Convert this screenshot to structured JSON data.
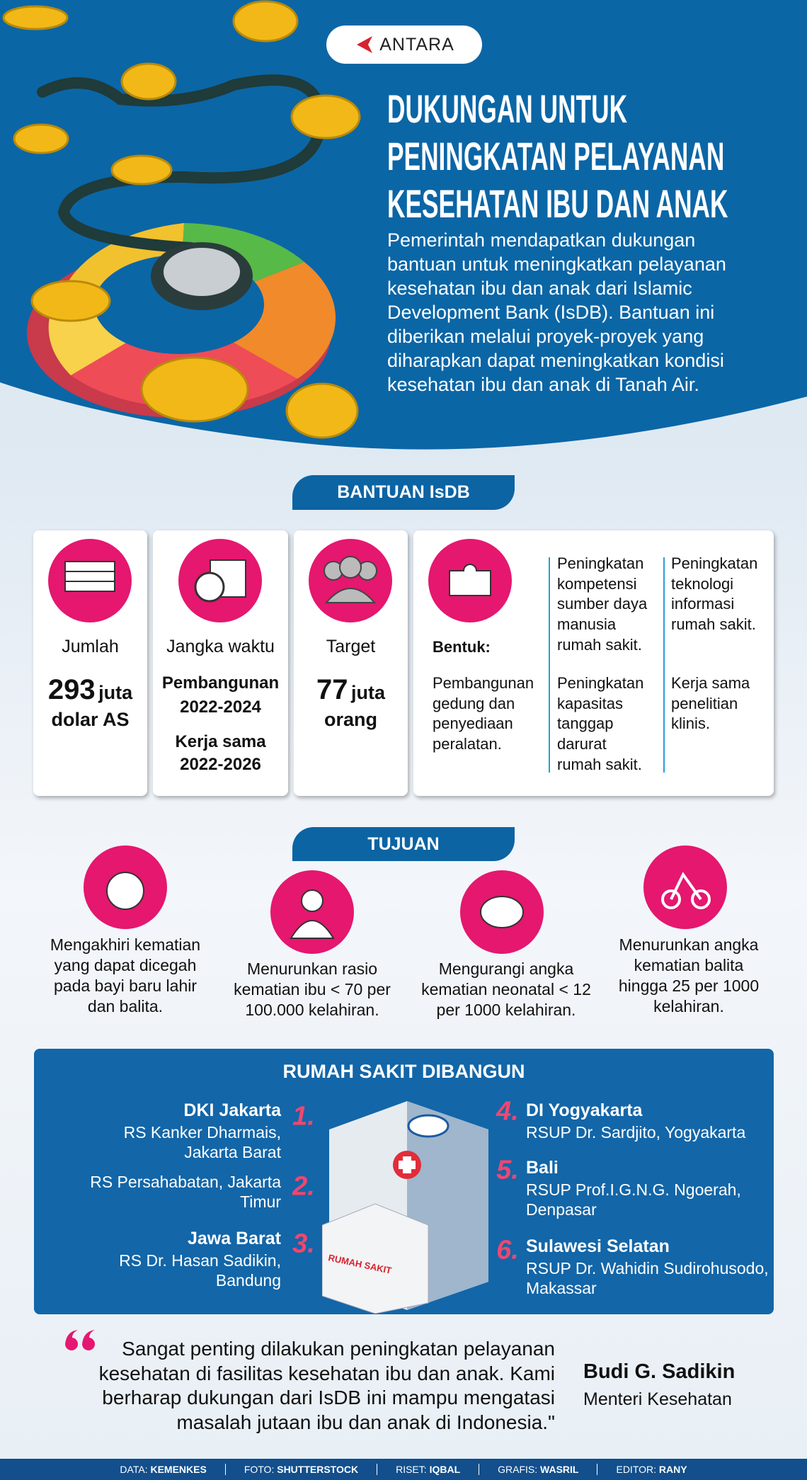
{
  "header": {
    "logo": "ANTARA",
    "title_lines": [
      "DUKUNGAN UNTUK",
      "PENINGKATAN PELAYANAN",
      "KESEHATAN IBU DAN ANAK"
    ],
    "intro": "Pemerintah mendapatkan dukungan bantuan untuk meningkatkan pelayanan kesehatan ibu dan anak dari Islamic Development Bank (IsDB). Bantuan ini diberikan melalui proyek-proyek yang diharapkan dapat meningkatkan kondisi kesehatan ibu dan anak di Tanah Air."
  },
  "bantuan": {
    "heading": "BANTUAN IsDB",
    "amount": {
      "label": "Jumlah",
      "number": 293,
      "unit": "juta",
      "currency": "dolar AS"
    },
    "duration": {
      "label": "Jangka waktu",
      "phases": [
        {
          "name": "Pembangunan",
          "period": "2022-2024"
        },
        {
          "name": "Kerja sama",
          "period": "2022-2026"
        }
      ]
    },
    "target": {
      "label": "Target",
      "number": 77,
      "unit": "juta",
      "subject": "orang"
    },
    "form": {
      "label": "Bentuk:",
      "items": [
        "Pembangunan gedung dan penyediaan peralatan.",
        "Peningkatan kompetensi sumber daya manusia rumah sakit.",
        "Peningkatan kapasitas tanggap darurat rumah sakit.",
        "Peningkatan teknologi informasi rumah sakit.",
        "Kerja sama penelitian klinis."
      ]
    }
  },
  "tujuan": {
    "heading": "TUJUAN",
    "items": [
      "Mengakhiri kematian yang dapat dicegah pada bayi baru lahir dan balita.",
      "Menurunkan rasio kematian ibu < 70 per 100.000 kelahiran.",
      "Mengurangi angka kematian neonatal < 12 per 1000 kelahiran.",
      "Menurunkan angka kematian balita hingga 25 per 1000 kelahiran."
    ]
  },
  "rumah_sakit": {
    "heading": "RUMAH SAKIT DIBANGUN",
    "building_label": "RUMAH SAKIT",
    "entries": [
      {
        "number": "1.",
        "region": "DKI Jakarta",
        "hospital": "RS Kanker Dharmais, Jakarta Barat"
      },
      {
        "number": "2.",
        "hospital": "RS Persahabatan, Jakarta Timur"
      },
      {
        "number": "3.",
        "region": "Jawa Barat",
        "hospital": "RS Dr. Hasan Sadikin, Bandung"
      },
      {
        "number": "4.",
        "region": "DI Yogyakarta",
        "hospital": "RSUP Dr. Sardjito, Yogyakarta"
      },
      {
        "number": "5.",
        "region": "Bali",
        "hospital": "RSUP Prof.I.G.N.G. Ngoerah, Denpasar"
      },
      {
        "number": "6.",
        "region": "Sulawesi Selatan",
        "hospital": "RSUP Dr. Wahidin Sudirohusodo, Makassar"
      }
    ]
  },
  "quote": {
    "lines": [
      "Sangat penting dilakukan peningkatan pelayanan",
      "kesehatan di fasilitas kesehatan ibu dan anak. Kami",
      "berharap dukungan dari IsDB ini mampu mengatasi",
      "masalah jutaan ibu dan anak di Indonesia.\""
    ],
    "speaker": "Budi G. Sadikin",
    "role": "Menteri Kesehatan"
  },
  "footer": [
    {
      "label": "DATA:",
      "value": "KEMENKES"
    },
    {
      "label": "FOTO:",
      "value": "SHUTTERSTOCK"
    },
    {
      "label": "RISET:",
      "value": "IQBAL"
    },
    {
      "label": "GRAFIS:",
      "value": "WASRIL"
    },
    {
      "label": "EDITOR:",
      "value": "RANY"
    }
  ]
}
